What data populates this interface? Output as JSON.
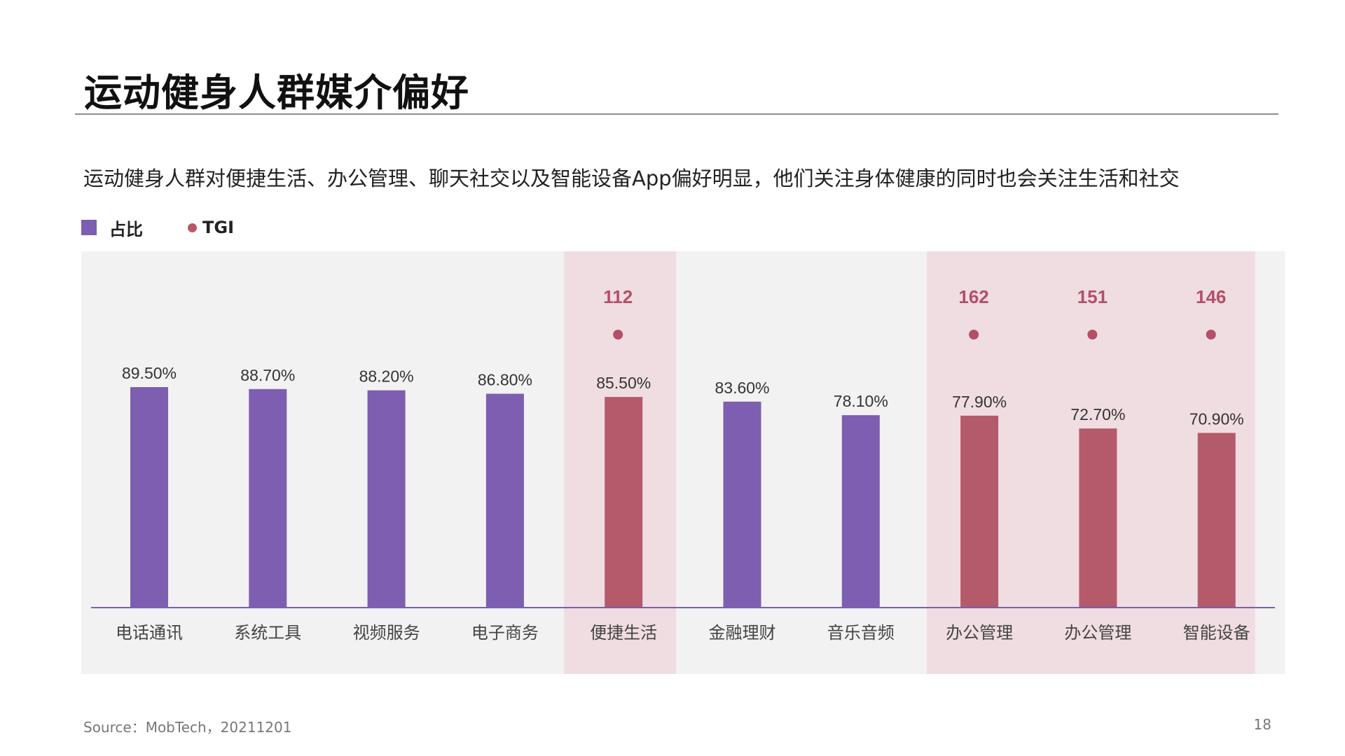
{
  "page": {
    "title": "运动健身人群媒介偏好",
    "subtitle": "运动健身人群对便捷生活、办公管理、聊天社交以及智能设备App偏好明显，他们关注身体健康的同时也会关注生活和社交",
    "source": "Source：MobTech，20211201",
    "page_number": "18"
  },
  "legend": {
    "share_label": "占比",
    "tgi_label": "TGI"
  },
  "colors": {
    "purple": "#7d5eb0",
    "red": "#b55a6b",
    "plot_bg": "#f2f2f2",
    "highlight_bg": "#f0dde1",
    "tgi_text": "#b34f67"
  },
  "chart_data": {
    "type": "bar",
    "categories": [
      "电话通讯",
      "系统工具",
      "视频服务",
      "电子商务",
      "便捷生活",
      "金融理财",
      "音乐音频",
      "办公管理",
      "办公管理",
      "智能设备"
    ],
    "series": [
      {
        "name": "占比",
        "values": [
          89.5,
          88.7,
          88.2,
          86.8,
          85.5,
          83.6,
          78.1,
          77.9,
          72.7,
          70.9
        ],
        "labels": [
          "89.50%",
          "88.70%",
          "88.20%",
          "86.80%",
          "85.50%",
          "83.60%",
          "78.10%",
          "77.90%",
          "72.70%",
          "70.90%"
        ]
      },
      {
        "name": "TGI",
        "values": [
          null,
          null,
          null,
          null,
          112,
          null,
          null,
          162,
          151,
          146
        ],
        "labels": [
          "",
          "",
          "",
          "",
          "112",
          "",
          "",
          "162",
          "151",
          "146"
        ]
      }
    ],
    "highlighted": [
      false,
      false,
      false,
      false,
      true,
      false,
      false,
      true,
      true,
      true
    ],
    "ylim": [
      0,
      100
    ],
    "grid": false,
    "legend_position": "top-left"
  }
}
